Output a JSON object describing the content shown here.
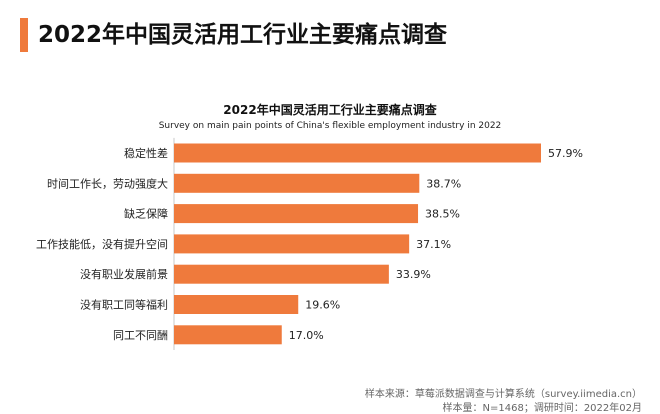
{
  "page": {
    "title": "2022年中国灵活用工行业主要痛点调查"
  },
  "chart_data": {
    "type": "bar",
    "orientation": "horizontal",
    "title": "2022年中国灵活用工行业主要痛点调查",
    "subtitle": "Survey on main pain points of China's flexible employment industry in 2022",
    "categories": [
      "稳定性差",
      "时间工作长，劳动强度大",
      "缺乏保障",
      "工作技能低，没有提升空间",
      "没有职业发展前景",
      "没有职工同等福利",
      "同工不同酬"
    ],
    "values": [
      57.9,
      38.7,
      38.5,
      37.1,
      33.9,
      19.6,
      17.0
    ],
    "value_labels": [
      "57.9%",
      "38.7%",
      "38.5%",
      "37.1%",
      "33.9%",
      "19.6%",
      "17.0%"
    ],
    "xlim": [
      0,
      57.9
    ],
    "unit": "%",
    "bar_color": "#ef7a3c",
    "grid": false
  },
  "footer": {
    "source": "样本来源：草莓派数据调查与计算系统（survey.iimedia.cn）",
    "sample": "样本量：N=1468；调研时间：2022年02月"
  },
  "colors": {
    "accent": "#ef7a3c"
  }
}
